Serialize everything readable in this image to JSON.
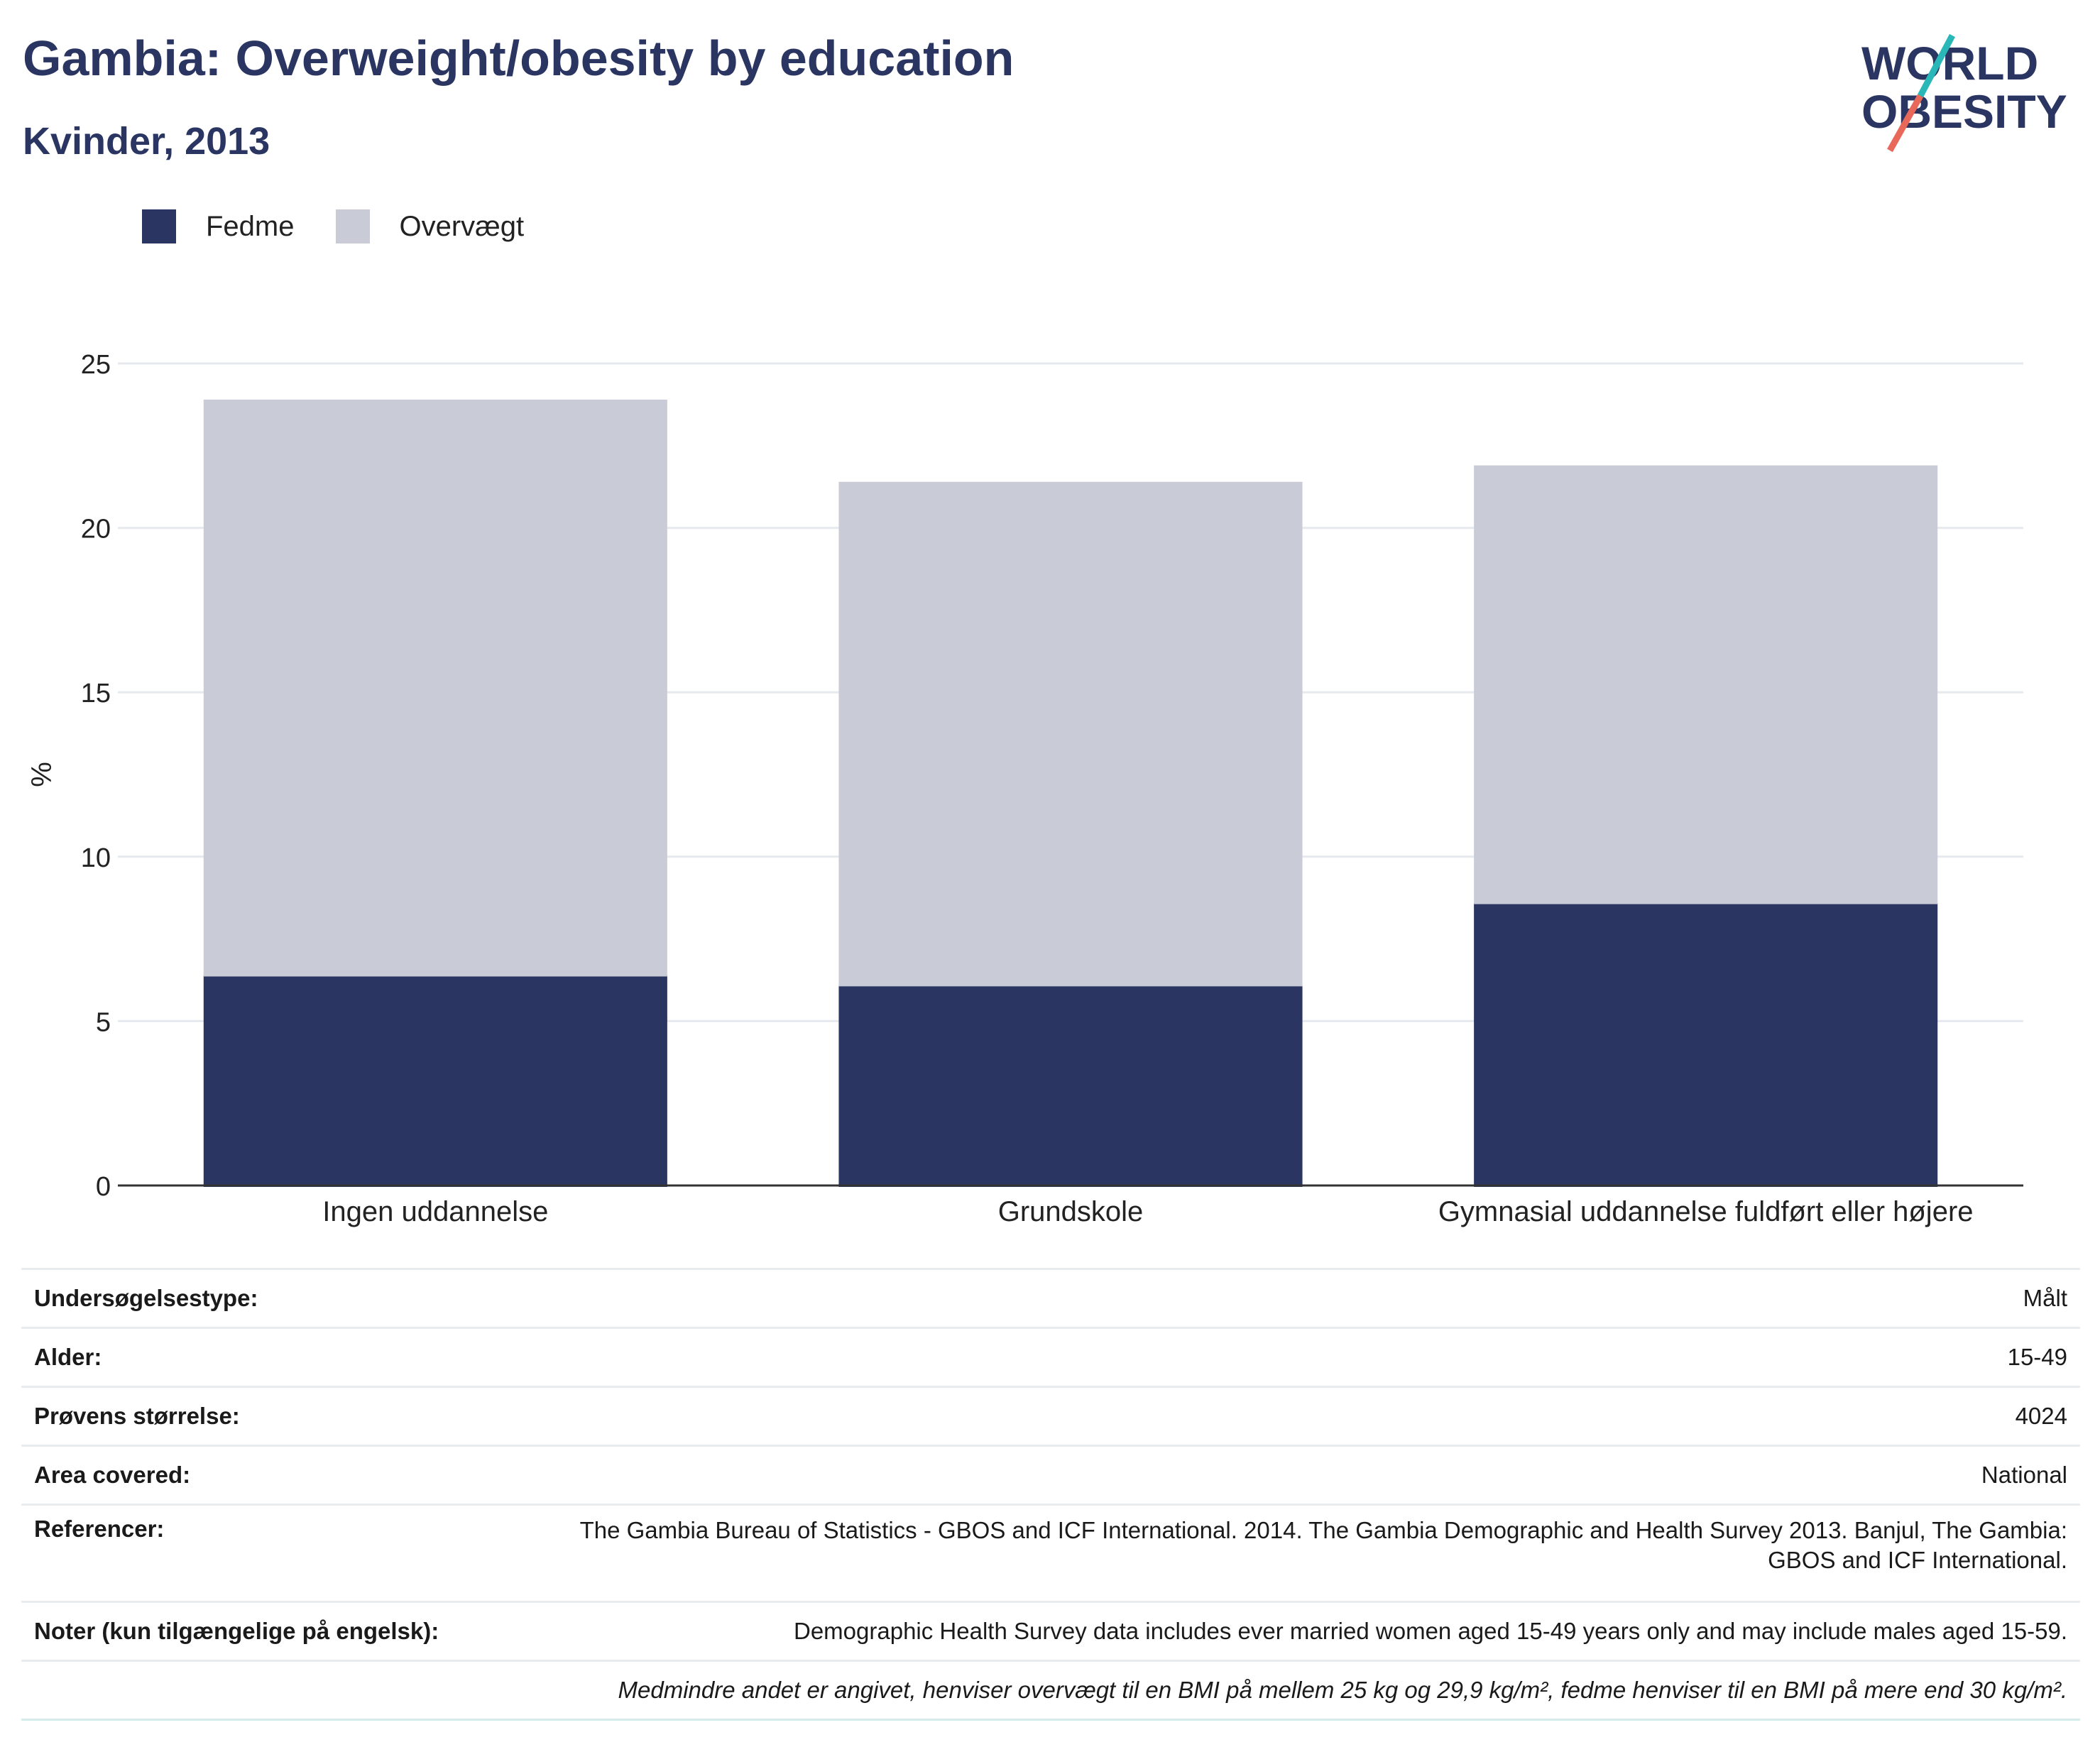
{
  "header": {
    "title": "Gambia: Overweight/obesity by education",
    "subtitle": "Kvinder, 2013"
  },
  "logo": {
    "line1": "WORLD",
    "line2": "OBESITY"
  },
  "colors": {
    "title": "#2a3562",
    "obesity": "#2a3562",
    "overweight": "#c9ccd7",
    "logo_teal": "#2ab7b7",
    "logo_coral": "#e8695a"
  },
  "chart_data": {
    "type": "bar",
    "stacked": true,
    "categories": [
      "Ingen uddannelse",
      "Grundskole",
      "Gymnasial uddannelse fuldført eller højere"
    ],
    "series": [
      {
        "name": "Fedme",
        "values": [
          6.4,
          6.1,
          8.6
        ]
      },
      {
        "name": "Overvægt",
        "values": [
          17.5,
          15.3,
          13.3
        ]
      }
    ],
    "ylabel": "%",
    "ylim": [
      0,
      25
    ],
    "yticks": [
      0,
      5,
      10,
      15,
      20,
      25
    ],
    "grid": true,
    "legend": "top-left"
  },
  "info": {
    "rows": [
      {
        "key": "Undersøgelsestype:",
        "value": "Målt"
      },
      {
        "key": "Alder:",
        "value": "15-49"
      },
      {
        "key": "Prøvens størrelse:",
        "value": "4024"
      },
      {
        "key": "Area covered:",
        "value": "National"
      },
      {
        "key": "Referencer:",
        "value": "The Gambia Bureau of Statistics - GBOS and ICF International. 2014. The Gambia Demographic and Health Survey 2013. Banjul, The Gambia: GBOS and ICF International."
      },
      {
        "key": "Noter (kun tilgængelige på engelsk):",
        "value": "Demographic Health Survey data includes ever married women aged 15-49 years only and may include males aged 15-59."
      }
    ],
    "footnote": "Medmindre andet er angivet, henviser overvægt til en BMI på mellem 25 kg og 29,9 kg/m², fedme henviser til en BMI på mere end 30 kg/m²."
  }
}
